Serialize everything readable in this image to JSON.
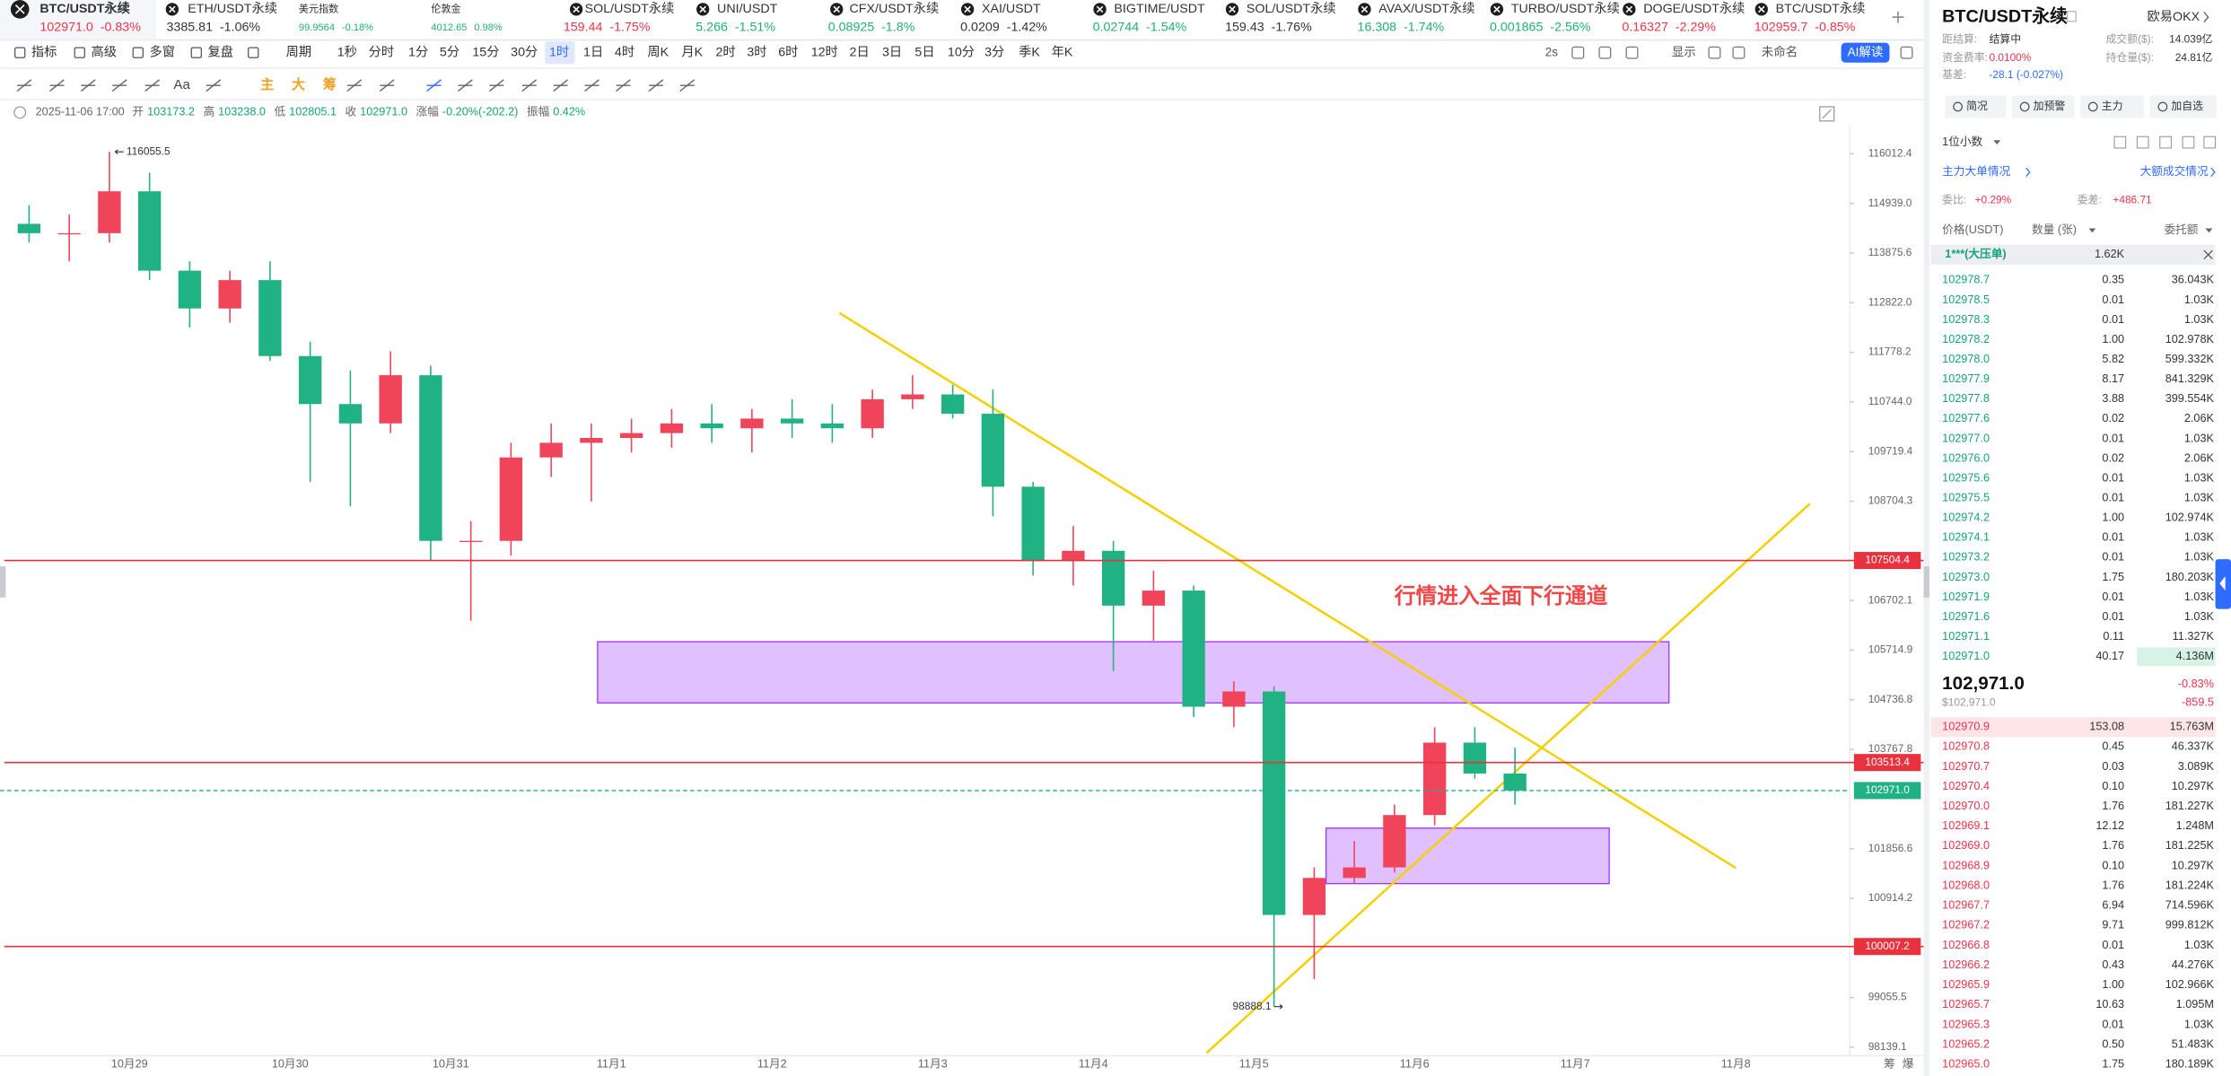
{
  "tickers": [
    {
      "name": "BTC/USDT永续",
      "price": "102971.0",
      "change": "-0.83%",
      "color": "#f0334a"
    },
    {
      "name": "ETH/USDT永续",
      "price": "3385.81",
      "change": "-1.06%",
      "color": "#333333"
    },
    {
      "name": "美元指数",
      "price": "99.9564",
      "change": "-0.18%",
      "color": "#20b26c"
    },
    {
      "name": "伦敦金",
      "price": "4012.65",
      "change": "0.98%",
      "color": "#20b26c"
    },
    {
      "name": "SOL/USDT永续",
      "price": "159.44",
      "change": "-1.75%",
      "color": "#f0334a"
    },
    {
      "name": "UNI/USDT",
      "price": "5.266",
      "change": "-1.51%",
      "color": "#20b26c"
    },
    {
      "name": "CFX/USDT永续",
      "price": "0.08925",
      "change": "-1.8%",
      "color": "#20b26c"
    },
    {
      "name": "XAI/USDT",
      "price": "0.0209",
      "change": "-1.42%",
      "color": "#333333"
    },
    {
      "name": "BIGTIME/USDT",
      "price": "0.02744",
      "change": "-1.54%",
      "color": "#20b26c"
    },
    {
      "name": "SOL/USDT永续",
      "price": "159.43",
      "change": "-1.76%",
      "color": "#333333"
    },
    {
      "name": "AVAX/USDT永续",
      "price": "16.308",
      "change": "-1.74%",
      "color": "#20b26c"
    },
    {
      "name": "TURBO/USDT永续",
      "price": "0.001865",
      "change": "-2.56%",
      "color": "#20b26c"
    },
    {
      "name": "DOGE/USDT永续",
      "price": "0.16327",
      "change": "-2.29%",
      "color": "#f0334a"
    },
    {
      "name": "BTC/USDT永续",
      "price": "102959.7",
      "change": "-0.85%",
      "color": "#f0334a"
    }
  ],
  "toolbar": {
    "left": [
      "指标",
      "高级",
      "多窗",
      "复盘",
      "周期"
    ],
    "intervals": [
      "1秒",
      "分时",
      "1分",
      "5分",
      "15分",
      "30分",
      "1时",
      "1日",
      "4时",
      "周K",
      "月K",
      "2时",
      "3时",
      "6时",
      "12时",
      "2日",
      "3日",
      "5日",
      "10分",
      "3分",
      "季K",
      "年K"
    ],
    "selected": "1时",
    "right": [
      "2s",
      "显示",
      "未命名"
    ],
    "ai_button": "AI解读"
  },
  "drawing_tools": [
    "Aa",
    "主",
    "大",
    "筹"
  ],
  "info": {
    "datetime": "2025-11-06 17:00",
    "fields": [
      [
        "开",
        "103173.2"
      ],
      [
        "高",
        "103238.0"
      ],
      [
        "低",
        "102805.1"
      ],
      [
        "收",
        "102971.0"
      ],
      [
        "涨幅",
        "-0.20%(-202.2)"
      ],
      [
        "振幅",
        "0.42%"
      ]
    ]
  },
  "chart_data": {
    "type": "candlestick",
    "open": [
      114500,
      114300,
      114300,
      115200,
      113500,
      112700,
      113300,
      111700,
      110700,
      110300,
      111300,
      107900,
      107900,
      109600,
      109900,
      110000,
      110100,
      110300,
      110200,
      110400,
      110300,
      110200,
      110800,
      110900,
      110500,
      109000,
      107500,
      107700,
      106600,
      106900,
      104600,
      104900,
      100600,
      101300,
      101500,
      102500,
      103900,
      103300
    ],
    "high": [
      114900,
      114700,
      116055.5,
      115600,
      113700,
      113500,
      113700,
      112000,
      111400,
      111800,
      111500,
      108300,
      109900,
      110300,
      110300,
      110400,
      110600,
      110700,
      110600,
      110800,
      110700,
      111000,
      111300,
      111100,
      111000,
      109100,
      108200,
      107900,
      107300,
      107000,
      105100,
      105000,
      101500,
      102000,
      102700,
      104200,
      104200,
      103800
    ],
    "low": [
      114100,
      113700,
      114100,
      113300,
      112300,
      112400,
      111600,
      109100,
      108600,
      110100,
      107500,
      106300,
      107600,
      109200,
      108700,
      109700,
      109800,
      109900,
      109700,
      110000,
      109900,
      110000,
      110600,
      110400,
      108400,
      107200,
      107000,
      105300,
      105900,
      104400,
      104200,
      98888.1,
      99400,
      101200,
      101400,
      102300,
      103200,
      102700
    ],
    "close": [
      114300,
      114300,
      115200,
      113500,
      112700,
      113300,
      111700,
      110700,
      110300,
      111300,
      107900,
      107900,
      109600,
      109900,
      110000,
      110100,
      110300,
      110200,
      110400,
      110300,
      110200,
      110800,
      110900,
      110500,
      109000,
      107500,
      107700,
      106600,
      106900,
      104600,
      104900,
      100600,
      101300,
      101500,
      102500,
      103900,
      103300,
      102971
    ],
    "up_color": "#f0445a",
    "down_color": "#20b283",
    "log_scale": true,
    "ylim": [
      97982,
      116634
    ],
    "yticks": [
      116012.4,
      {
        "value": 114939,
        "label": "114939.0"
      },
      113875.6,
      {
        "value": 112822,
        "label": "112822.0"
      },
      111778.2,
      {
        "value": 110744,
        "label": "110744.0"
      },
      109719.4,
      108704.3,
      106702.1,
      105714.9,
      104736.8,
      103767.8,
      101856.6,
      100914.2,
      99055.5,
      98139.1
    ],
    "x_labels": [
      "10月29",
      "10月30",
      "10月31",
      "11月1",
      "11月2",
      "11月3",
      "11月4",
      "11月5",
      "11月6",
      "11月7",
      "11月8"
    ],
    "hlines": [
      107504.4,
      103513.4,
      100007.2
    ],
    "hline_color": "#e8333f",
    "last_price": {
      "value": 102971,
      "label": "102971.0"
    },
    "last_color": "#20b283",
    "annotation": "行情进入全面下行通道",
    "axis_corner": [
      "筹",
      "爆"
    ]
  },
  "panel": {
    "symbol": "BTC/USDT永续",
    "exchange": "欧易OKX",
    "stats": [
      [
        "距结算:",
        "结算中"
      ],
      [
        "成交额($):",
        "14.039亿"
      ],
      [
        "资金费率:",
        "0.0100%"
      ],
      [
        "持仓量($):",
        "24.81亿"
      ],
      [
        "基差:",
        "-28.1 (-0.027%)"
      ]
    ],
    "buttons": [
      "简况",
      "加预警",
      "主力",
      "加自选"
    ],
    "precision": "1位小数",
    "links": [
      "主力大单情况",
      "大额成交情况"
    ],
    "ratio": [
      [
        "委比:",
        "+0.29%"
      ],
      [
        "委差:",
        "+486.71"
      ]
    ]
  },
  "order_book": {
    "headers": [
      "价格(USDT)",
      "数量 (张)",
      "委托额"
    ],
    "big_order": {
      "label": "1***(大压单)",
      "qty": "1.62K"
    },
    "asks": [
      [
        "102978.7",
        "0.35",
        "36.043K"
      ],
      [
        "102978.5",
        "0.01",
        "1.03K"
      ],
      [
        "102978.3",
        "0.01",
        "1.03K"
      ],
      [
        "102978.2",
        "1.00",
        "102.978K"
      ],
      [
        "102978.0",
        "5.82",
        "599.332K"
      ],
      [
        "102977.9",
        "8.17",
        "841.329K"
      ],
      [
        "102977.8",
        "3.88",
        "399.554K"
      ],
      [
        "102977.6",
        "0.02",
        "2.06K"
      ],
      [
        "102977.0",
        "0.01",
        "1.03K"
      ],
      [
        "102976.0",
        "0.02",
        "2.06K"
      ],
      [
        "102975.6",
        "0.01",
        "1.03K"
      ],
      [
        "102975.5",
        "0.01",
        "1.03K"
      ],
      [
        "102974.2",
        "1.00",
        "102.974K"
      ],
      [
        "102974.1",
        "0.01",
        "1.03K"
      ],
      [
        "102973.2",
        "0.01",
        "1.03K"
      ],
      [
        "102973.0",
        "1.75",
        "180.203K"
      ],
      [
        "102971.9",
        "0.01",
        "1.03K"
      ],
      [
        "102971.6",
        "0.01",
        "1.03K"
      ],
      [
        "102971.1",
        "0.11",
        "11.327K"
      ],
      [
        "102971.0",
        "40.17",
        "4.136M"
      ]
    ],
    "mid": {
      "price": "102,971.0",
      "change": "-0.83%",
      "usd": "$102,971.0",
      "diff": "-859.5"
    },
    "bids": [
      [
        "102970.9",
        "153.08",
        "15.763M"
      ],
      [
        "102970.8",
        "0.45",
        "46.337K"
      ],
      [
        "102970.7",
        "0.03",
        "3.089K"
      ],
      [
        "102970.4",
        "0.10",
        "10.297K"
      ],
      [
        "102970.0",
        "1.76",
        "181.227K"
      ],
      [
        "102969.1",
        "12.12",
        "1.248M"
      ],
      [
        "102969.0",
        "1.76",
        "181.225K"
      ],
      [
        "102968.9",
        "0.10",
        "10.297K"
      ],
      [
        "102968.0",
        "1.76",
        "181.224K"
      ],
      [
        "102967.7",
        "6.94",
        "714.596K"
      ],
      [
        "102967.2",
        "9.71",
        "999.812K"
      ],
      [
        "102966.8",
        "0.01",
        "1.03K"
      ],
      [
        "102966.2",
        "0.43",
        "44.276K"
      ],
      [
        "102965.9",
        "1.00",
        "102.966K"
      ],
      [
        "102965.7",
        "10.63",
        "1.095M"
      ],
      [
        "102965.3",
        "0.01",
        "1.03K"
      ],
      [
        "102965.2",
        "0.50",
        "51.483K"
      ],
      [
        "102965.0",
        "1.75",
        "180.189K"
      ]
    ]
  }
}
